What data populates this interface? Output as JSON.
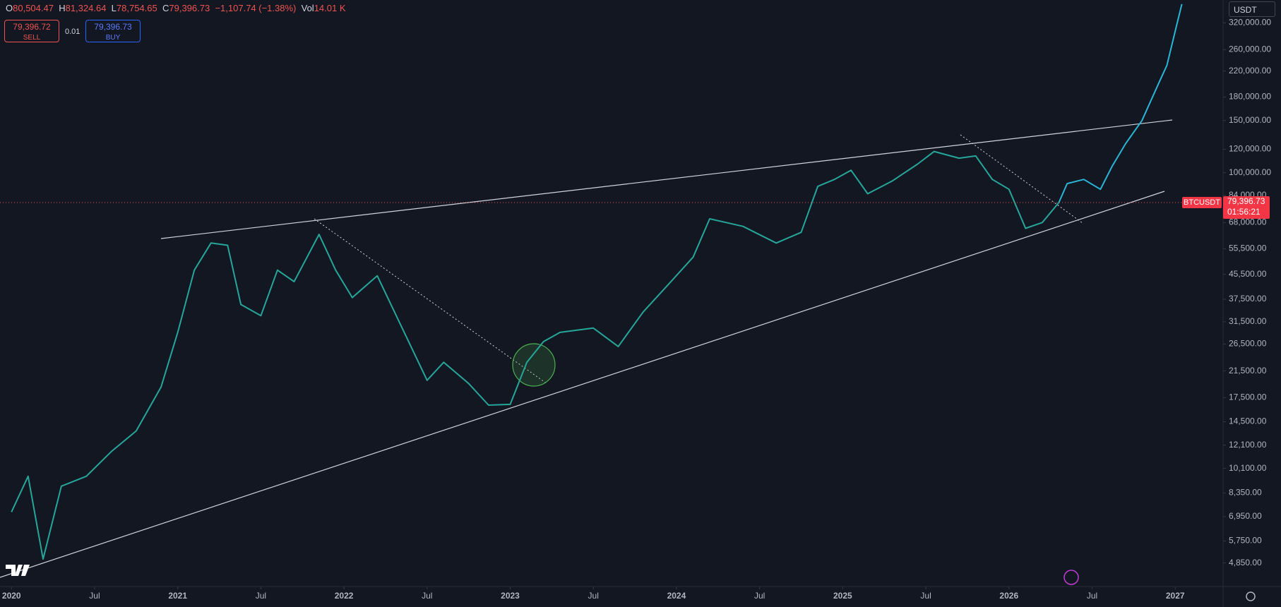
{
  "ui": {
    "ohlc": {
      "o_key": "O",
      "o": "80,504.47",
      "h_key": "H",
      "h": "81,324.64",
      "l_key": "L",
      "l": "78,754.65",
      "c_key": "C",
      "c": "79,396.73",
      "change": "−1,107.74 (−1.38%)",
      "vol_key": "Vol",
      "vol": "14.01 K"
    },
    "sell": {
      "price": "79,396.72",
      "label": "SELL"
    },
    "spread": "0.01",
    "buy": {
      "price": "79,396.73",
      "label": "BUY"
    },
    "currency": "USDT"
  },
  "chart_data": {
    "type": "line",
    "log_scale": true,
    "symbol": "BTCUSDT",
    "last_price": {
      "value": 79396.73,
      "label": "79,396.73"
    },
    "countdown": "01:56:21",
    "xlim": [
      2019.931,
      2027.288
    ],
    "ylim": [
      4040,
      382000
    ],
    "xticks": [
      {
        "value": 2020,
        "label": "2020"
      },
      {
        "value": 2020.5,
        "label": "Jul"
      },
      {
        "value": 2021,
        "label": "2021"
      },
      {
        "value": 2021.5,
        "label": "Jul"
      },
      {
        "value": 2022,
        "label": "2022"
      },
      {
        "value": 2022.5,
        "label": "Jul"
      },
      {
        "value": 2023,
        "label": "2023"
      },
      {
        "value": 2023.5,
        "label": "Jul"
      },
      {
        "value": 2024,
        "label": "2024"
      },
      {
        "value": 2024.5,
        "label": "Jul"
      },
      {
        "value": 2025,
        "label": "2025"
      },
      {
        "value": 2025.5,
        "label": "Jul"
      },
      {
        "value": 2026,
        "label": "2026"
      },
      {
        "value": 2026.5,
        "label": "Jul"
      },
      {
        "value": 2027,
        "label": "2027"
      }
    ],
    "yticks": [
      {
        "value": 320000,
        "label": "320,000.00"
      },
      {
        "value": 260000,
        "label": "260,000.00"
      },
      {
        "value": 220000,
        "label": "220,000.00"
      },
      {
        "value": 180000,
        "label": "180,000.00"
      },
      {
        "value": 150000,
        "label": "150,000.00"
      },
      {
        "value": 120000,
        "label": "120,000.00"
      },
      {
        "value": 100000,
        "label": "100,000.00"
      },
      {
        "value": 84000,
        "label": "84,000.00"
      },
      {
        "value": 68000,
        "label": "68,000.00"
      },
      {
        "value": 55500,
        "label": "55,500.00"
      },
      {
        "value": 45500,
        "label": "45,500.00"
      },
      {
        "value": 37500,
        "label": "37,500.00"
      },
      {
        "value": 31500,
        "label": "31,500.00"
      },
      {
        "value": 26500,
        "label": "26,500.00"
      },
      {
        "value": 21500,
        "label": "21,500.00"
      },
      {
        "value": 17500,
        "label": "17,500.00"
      },
      {
        "value": 14500,
        "label": "14,500.00"
      },
      {
        "value": 12100,
        "label": "12,100.00"
      },
      {
        "value": 10100,
        "label": "10,100.00"
      },
      {
        "value": 8350,
        "label": "8,350.00"
      },
      {
        "value": 6950,
        "label": "6,950.00"
      },
      {
        "value": 5750,
        "label": "5,750.00"
      },
      {
        "value": 4850,
        "label": "4,850.00"
      }
    ],
    "series": [
      {
        "color": "#26a69a",
        "x": [
          2020.0,
          2020.1,
          2020.19,
          2020.3,
          2020.45,
          2020.6,
          2020.75,
          2020.9,
          2021.0,
          2021.1,
          2021.2,
          2021.3,
          2021.38,
          2021.5,
          2021.6,
          2021.7,
          2021.85,
          2021.95,
          2022.05,
          2022.2,
          2022.35,
          2022.5,
          2022.6,
          2022.75,
          2022.87,
          2023.0,
          2023.1,
          2023.2,
          2023.3,
          2023.5,
          2023.65,
          2023.8,
          2023.95,
          2024.1,
          2024.2,
          2024.4,
          2024.6,
          2024.75,
          2024.85,
          2024.95,
          2025.05,
          2025.15,
          2025.3,
          2025.45,
          2025.55,
          2025.7,
          2025.8,
          2025.9,
          2026.0,
          2026.1,
          2026.2,
          2026.3
        ],
        "values": [
          7200,
          9500,
          5000,
          8800,
          9500,
          11500,
          13500,
          19000,
          29000,
          47000,
          58000,
          57000,
          36000,
          33000,
          47000,
          43000,
          62000,
          47000,
          38000,
          45000,
          30000,
          20000,
          23000,
          19500,
          16500,
          16600,
          23000,
          27000,
          29000,
          30000,
          26000,
          34000,
          42000,
          52000,
          70000,
          66000,
          58000,
          63000,
          90000,
          95000,
          102000,
          85000,
          94000,
          107000,
          118000,
          112000,
          114000,
          95000,
          88000,
          65000,
          68000,
          79396.73
        ]
      },
      {
        "color": "#29b6d8",
        "x": [
          2026.3,
          2026.35,
          2026.45,
          2026.55,
          2026.62,
          2026.7,
          2026.8,
          2026.9,
          2026.95,
          2027.0,
          2027.04
        ],
        "values": [
          79396.73,
          92000,
          95000,
          88000,
          105000,
          125000,
          150000,
          200000,
          230000,
          300000,
          370000
        ]
      }
    ]
  }
}
